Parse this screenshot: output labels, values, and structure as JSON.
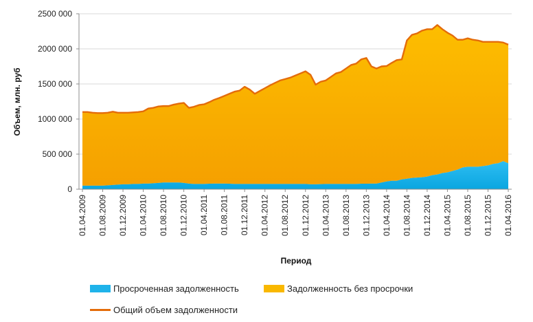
{
  "chart_data": {
    "type": "area",
    "stacked": true,
    "ylabel": "Объем, млн. руб",
    "xlabel": "Период",
    "ylim": [
      0,
      2500000
    ],
    "y_ticks": [
      "0",
      "500 000",
      "1000 000",
      "1500 000",
      "2000 000",
      "2500 000"
    ],
    "x_tick_labels": [
      "01.04.2009",
      "01.08.2009",
      "01.12.2009",
      "01.04.2010",
      "01.08.2010",
      "01.12.2010",
      "01.04.2011",
      "01.08.2011",
      "01.12.2011",
      "01.04.2012",
      "01.08.2012",
      "01.12.2012",
      "01.04.2013",
      "01.08.2013",
      "01.12.2013",
      "01.04.2014",
      "01.08.2014",
      "01.12.2014",
      "01.04.2015",
      "01.08.2015",
      "01.12.2015",
      "01.04.2016"
    ],
    "grid": "y-axis only (horizontal lines)",
    "legend_position": "bottom-left",
    "colors": {
      "overdue": "#1FB3EA",
      "current": "#F9B800",
      "total": "#E46C0A"
    },
    "legend": {
      "overdue": "Просроченная задолженность",
      "current": "Задолженность без просрочки",
      "total": "Общий объем задолженности"
    },
    "x": [
      "01.04.2009",
      "01.05.2009",
      "01.06.2009",
      "01.07.2009",
      "01.08.2009",
      "01.09.2009",
      "01.10.2009",
      "01.11.2009",
      "01.12.2009",
      "01.01.2010",
      "01.02.2010",
      "01.03.2010",
      "01.04.2010",
      "01.05.2010",
      "01.06.2010",
      "01.07.2010",
      "01.08.2010",
      "01.09.2010",
      "01.10.2010",
      "01.11.2010",
      "01.12.2010",
      "01.01.2011",
      "01.02.2011",
      "01.03.2011",
      "01.04.2011",
      "01.05.2011",
      "01.06.2011",
      "01.07.2011",
      "01.08.2011",
      "01.09.2011",
      "01.10.2011",
      "01.11.2011",
      "01.12.2011",
      "01.01.2012",
      "01.02.2012",
      "01.03.2012",
      "01.04.2012",
      "01.05.2012",
      "01.06.2012",
      "01.07.2012",
      "01.08.2012",
      "01.09.2012",
      "01.10.2012",
      "01.11.2012",
      "01.12.2012",
      "01.01.2013",
      "01.02.2013",
      "01.03.2013",
      "01.04.2013",
      "01.05.2013",
      "01.06.2013",
      "01.07.2013",
      "01.08.2013",
      "01.09.2013",
      "01.10.2013",
      "01.11.2013",
      "01.12.2013",
      "01.01.2014",
      "01.02.2014",
      "01.03.2014",
      "01.04.2014",
      "01.05.2014",
      "01.06.2014",
      "01.07.2014",
      "01.08.2014",
      "01.09.2014",
      "01.10.2014",
      "01.11.2014",
      "01.12.2014",
      "01.01.2015",
      "01.02.2015",
      "01.03.2015",
      "01.04.2015",
      "01.05.2015",
      "01.06.2015",
      "01.07.2015",
      "01.08.2015",
      "01.09.2015",
      "01.10.2015",
      "01.11.2015",
      "01.12.2015",
      "01.01.2016",
      "01.02.2016",
      "01.03.2016",
      "01.04.2016"
    ],
    "series": [
      {
        "name": "Просроченная задолженность",
        "values": [
          50000,
          50000,
          50000,
          50000,
          50000,
          55000,
          60000,
          65000,
          70000,
          70000,
          75000,
          75000,
          80000,
          80000,
          85000,
          90000,
          95000,
          95000,
          95000,
          95000,
          90000,
          80000,
          75000,
          75000,
          75000,
          78000,
          80000,
          80000,
          80000,
          78000,
          75000,
          75000,
          75000,
          75000,
          75000,
          75000,
          75000,
          75000,
          75000,
          75000,
          75000,
          75000,
          75000,
          75000,
          75000,
          70000,
          70000,
          72000,
          75000,
          75000,
          75000,
          75000,
          75000,
          75000,
          75000,
          78000,
          78000,
          80000,
          80000,
          95000,
          110000,
          120000,
          120000,
          140000,
          150000,
          160000,
          165000,
          170000,
          180000,
          200000,
          210000,
          230000,
          240000,
          260000,
          280000,
          310000,
          320000,
          320000,
          320000,
          330000,
          340000,
          360000,
          370000,
          400000,
          370000
        ]
      },
      {
        "name": "Задолженность без просрочки",
        "values": [
          1050000,
          1050000,
          1040000,
          1035000,
          1035000,
          1035000,
          1045000,
          1025000,
          1020000,
          1020000,
          1020000,
          1025000,
          1030000,
          1070000,
          1075000,
          1090000,
          1090000,
          1090000,
          1110000,
          1125000,
          1140000,
          1080000,
          1100000,
          1125000,
          1135000,
          1162000,
          1195000,
          1220000,
          1250000,
          1282000,
          1315000,
          1330000,
          1385000,
          1345000,
          1285000,
          1325000,
          1365000,
          1405000,
          1440000,
          1475000,
          1495000,
          1515000,
          1545000,
          1575000,
          1605000,
          1560000,
          1420000,
          1460000,
          1475000,
          1525000,
          1575000,
          1595000,
          1645000,
          1695000,
          1715000,
          1772000,
          1792000,
          1670000,
          1640000,
          1655000,
          1645000,
          1680000,
          1720000,
          1710000,
          1970000,
          2040000,
          2055000,
          2090000,
          2100000,
          2080000,
          2130000,
          2050000,
          1990000,
          1930000,
          1850000,
          1820000,
          1830000,
          1810000,
          1800000,
          1770000,
          1760000,
          1740000,
          1730000,
          1690000,
          1690000
        ]
      }
    ]
  }
}
